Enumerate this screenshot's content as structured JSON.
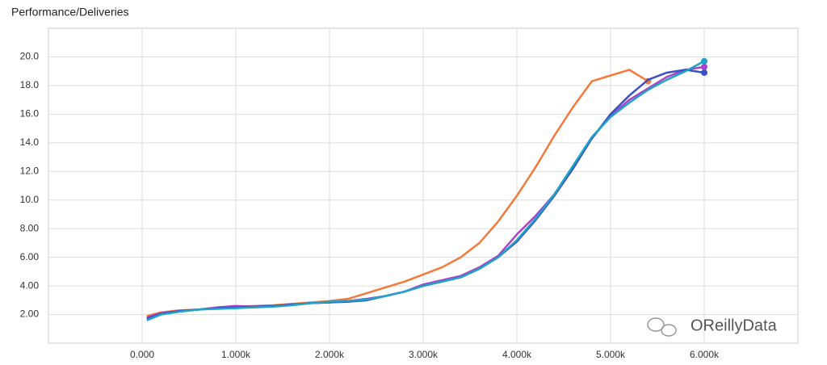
{
  "chart_data": {
    "type": "line",
    "title": "Performance/Deliveries",
    "x": [
      50,
      200,
      400,
      600,
      800,
      1000,
      1200,
      1400,
      1600,
      1800,
      2000,
      2200,
      2400,
      2600,
      2800,
      3000,
      3200,
      3400,
      3600,
      3800,
      4000,
      4200,
      4400,
      4600,
      4800,
      5000,
      5200,
      5400,
      5600,
      5800,
      6000
    ],
    "series": [
      {
        "color": "#f5793a",
        "values": [
          1.9,
          2.15,
          2.3,
          2.35,
          2.45,
          2.55,
          2.6,
          2.65,
          2.75,
          2.85,
          2.95,
          3.1,
          3.5,
          3.9,
          4.3,
          4.8,
          5.3,
          6.0,
          7.0,
          8.5,
          10.3,
          12.3,
          14.5,
          16.5,
          18.3,
          18.7,
          19.1,
          18.3,
          null,
          null,
          null
        ]
      },
      {
        "color": "#a943c9",
        "values": [
          1.8,
          2.1,
          2.25,
          2.35,
          2.5,
          2.6,
          2.55,
          2.6,
          2.7,
          2.8,
          2.85,
          2.95,
          3.1,
          3.3,
          3.6,
          4.1,
          4.4,
          4.7,
          5.3,
          6.1,
          7.6,
          8.9,
          10.4,
          12.3,
          14.3,
          15.9,
          17.0,
          17.8,
          18.6,
          19.1,
          19.3
        ]
      },
      {
        "color": "#3b50c5",
        "values": [
          1.7,
          2.05,
          2.25,
          2.35,
          2.45,
          2.5,
          2.55,
          2.6,
          2.7,
          2.8,
          2.85,
          2.9,
          3.0,
          3.3,
          3.6,
          4.0,
          4.3,
          4.6,
          5.2,
          6.0,
          7.1,
          8.6,
          10.3,
          12.2,
          14.3,
          16.0,
          17.3,
          18.4,
          18.9,
          19.1,
          18.9
        ]
      },
      {
        "color": "#1fa3c7",
        "values": [
          1.6,
          2.0,
          2.2,
          2.35,
          2.4,
          2.45,
          2.5,
          2.55,
          2.65,
          2.8,
          2.9,
          2.95,
          3.05,
          3.3,
          3.6,
          4.0,
          4.3,
          4.6,
          5.2,
          6.0,
          7.2,
          8.7,
          10.4,
          12.4,
          14.4,
          15.8,
          16.8,
          17.7,
          18.4,
          19.0,
          19.7
        ]
      }
    ],
    "xlim": [
      -1000,
      7000
    ],
    "xticks": [
      {
        "value": 0,
        "label": "0.000"
      },
      {
        "value": 1000,
        "label": "1.000k"
      },
      {
        "value": 2000,
        "label": "2.000k"
      },
      {
        "value": 3000,
        "label": "3.000k"
      },
      {
        "value": 4000,
        "label": "4.000k"
      },
      {
        "value": 5000,
        "label": "5.000k"
      },
      {
        "value": 6000,
        "label": "6.000k"
      }
    ],
    "ylim": [
      0,
      22
    ],
    "yticks": [
      {
        "value": 2,
        "label": "2.00"
      },
      {
        "value": 4,
        "label": "4.00"
      },
      {
        "value": 6,
        "label": "6.00"
      },
      {
        "value": 8,
        "label": "8.00"
      },
      {
        "value": 10,
        "label": "10.0"
      },
      {
        "value": 12,
        "label": "12.0"
      },
      {
        "value": 14,
        "label": "14.0"
      },
      {
        "value": 16,
        "label": "16.0"
      },
      {
        "value": 18,
        "label": "18.0"
      },
      {
        "value": 20,
        "label": "20.0"
      }
    ],
    "grid": true
  },
  "watermark": "OReillyData"
}
